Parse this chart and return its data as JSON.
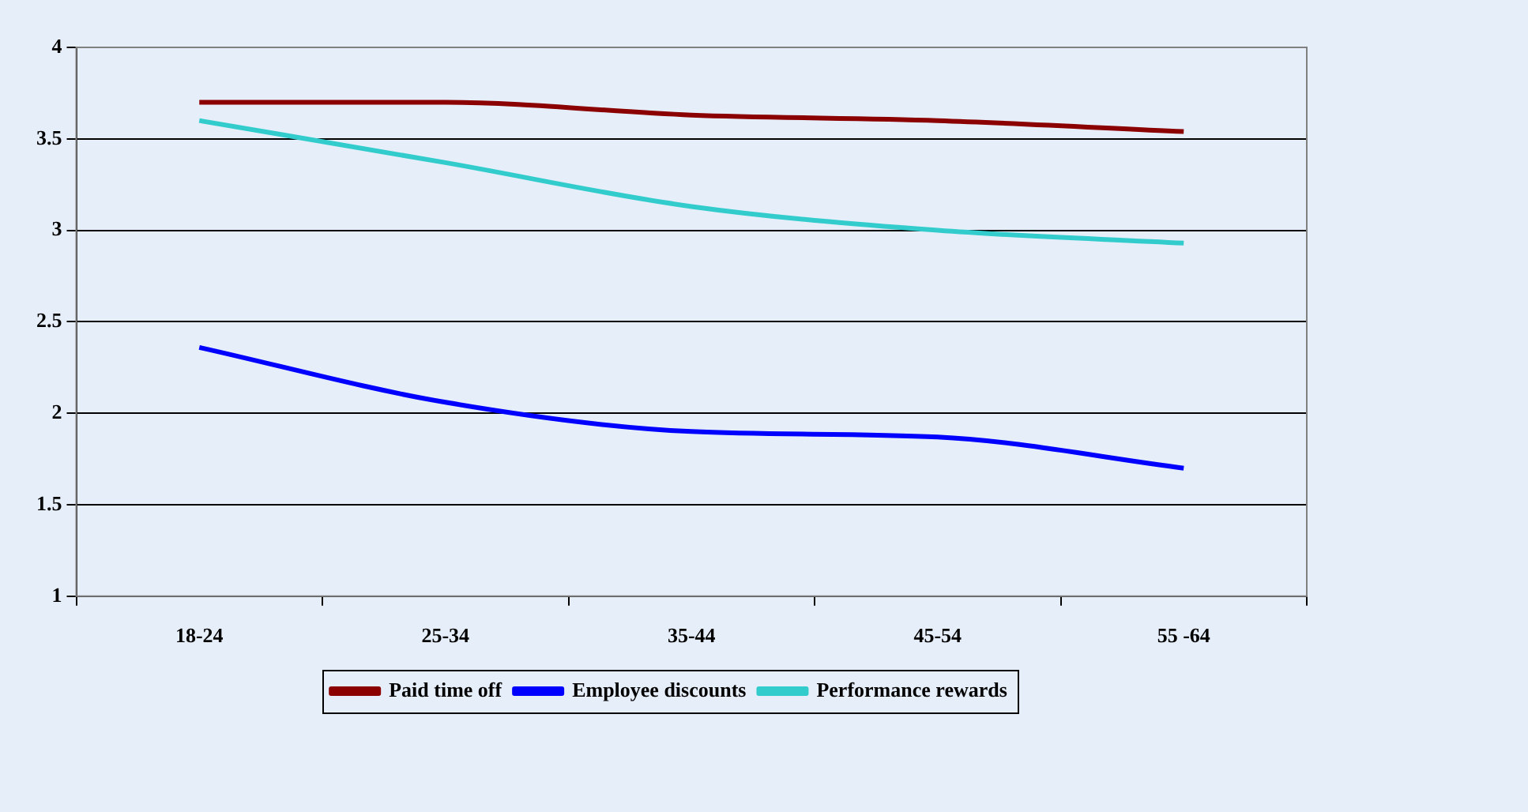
{
  "chart_data": {
    "type": "line",
    "categories": [
      "18-24",
      "25-34",
      "35-44",
      "45-54",
      "55 -64"
    ],
    "series": [
      {
        "name": "Paid time off",
        "color": "#8b0000",
        "values": [
          3.7,
          3.7,
          3.63,
          3.6,
          3.54
        ]
      },
      {
        "name": "Employee discounts",
        "color": "#0000ff",
        "values": [
          2.36,
          2.06,
          1.9,
          1.87,
          1.7
        ]
      },
      {
        "name": "Performance rewards",
        "color": "#33cccc",
        "values": [
          3.6,
          3.37,
          3.13,
          3.0,
          2.93
        ]
      }
    ],
    "ylim": [
      1,
      4
    ],
    "yticks": [
      1,
      1.5,
      2,
      2.5,
      3,
      3.5,
      4
    ],
    "grid": "y",
    "legend": "bottom",
    "marker": "none",
    "line_style": "solid"
  }
}
